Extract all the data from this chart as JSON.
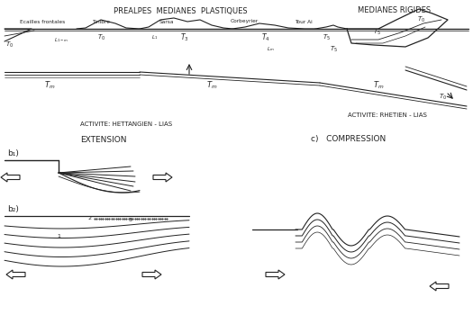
{
  "bg_color": "#ffffff",
  "line_color": "#222222",
  "title_prealpes": "PREALPES  MEDIANES  PLASTIQUES",
  "title_medianes": "MEDIANES RIGIDES",
  "label_ecailles": "Ecailles frontales",
  "label_tinibre": "Tinibre",
  "label_sarsa": "Sarsa",
  "label_corbeyrier": "Corbeyrier",
  "label_tour_ai": "Tour Ai",
  "label_act1": "ACTIVITE: HETTANGIEN - LIAS",
  "label_act2": "ACTIVITE: RHETIEN - LIAS",
  "label_extension": "EXTENSION",
  "label_compression": "c)   COMPRESSION",
  "label_b1": "b₁)",
  "label_b2": "b₂)",
  "figsize": [
    5.25,
    3.6
  ],
  "dpi": 100
}
